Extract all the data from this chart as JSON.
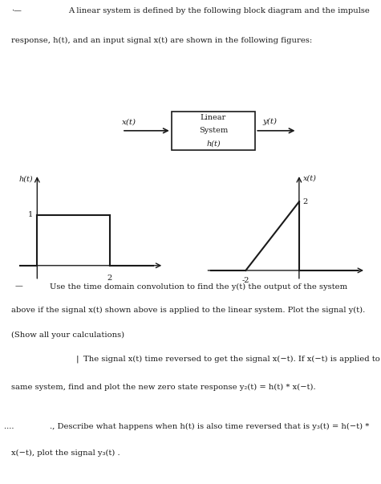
{
  "block_label_line1": "Linear",
  "block_label_line2": "System",
  "block_label_line3": "h(t)",
  "input_label": "x(t)",
  "output_label": "y(t)",
  "ht_ylabel": "h(t)",
  "ht_ytick": "1",
  "ht_xtick": "2",
  "xt_ylabel": "x(t)",
  "xt_ytick": "2",
  "xt_xtick": "-2",
  "bg_color": "#ffffff",
  "text_color": "#1a1a1a",
  "box_color": "#1a1a1a",
  "signal_color": "#1a1a1a",
  "axis_color": "#1a1a1a"
}
